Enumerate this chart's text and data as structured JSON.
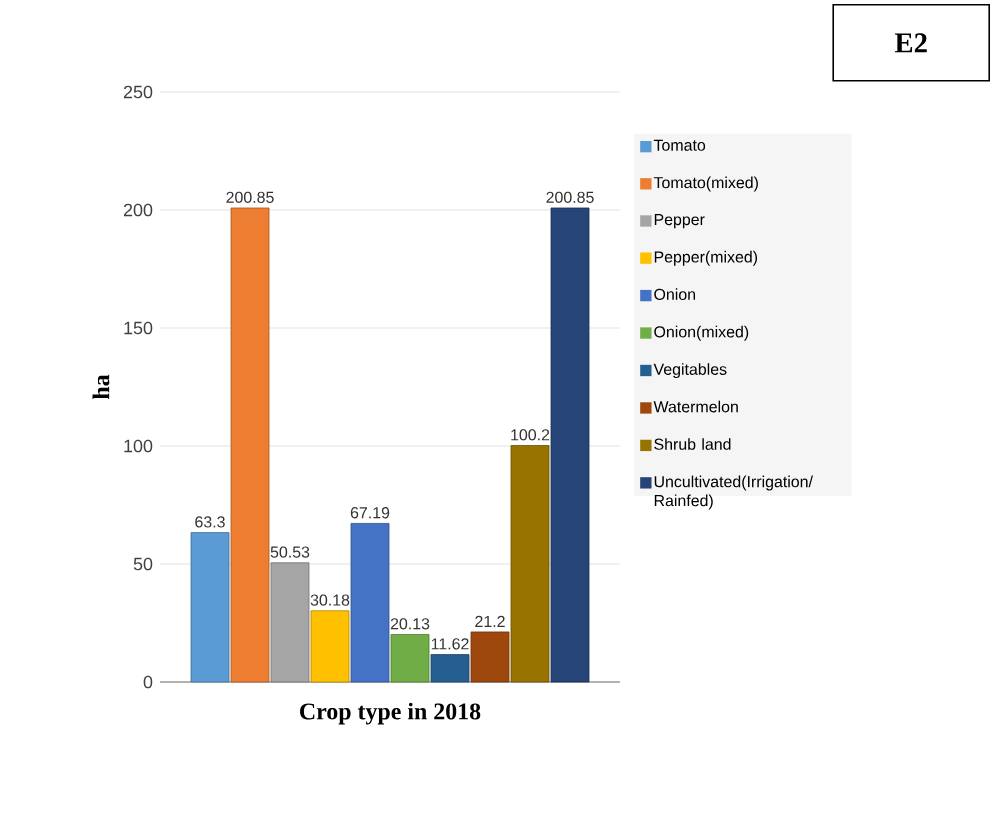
{
  "chart_data": {
    "type": "bar",
    "xlabel": "Crop type in 2018",
    "ylabel": "ha",
    "categories": [
      null
    ],
    "series": [
      {
        "name": "Tomato",
        "color": "#5b9bd5",
        "values": [
          63.3
        ]
      },
      {
        "name": "Tomato(mixed)",
        "color": "#ed7d31",
        "values": [
          200.85
        ]
      },
      {
        "name": "Pepper",
        "color": "#a5a5a5",
        "values": [
          50.53
        ]
      },
      {
        "name": "Pepper(mixed)",
        "color": "#ffc000",
        "values": [
          30.18
        ]
      },
      {
        "name": "Onion",
        "color": "#4472c4",
        "values": [
          67.19
        ]
      },
      {
        "name": "Onion(mixed)",
        "color": "#70ad47",
        "values": [
          20.13
        ]
      },
      {
        "name": "Vegitables",
        "color": "#255e91",
        "values": [
          11.62
        ]
      },
      {
        "name": "Watermelon",
        "color": "#9e480e",
        "values": [
          21.2
        ]
      },
      {
        "name": "Shrub land",
        "color": "#997300",
        "values": [
          100.2
        ]
      },
      {
        "name": "Uncultivated(Irrigation/ Rainfed)",
        "color": "#264478",
        "values": [
          200.85
        ]
      }
    ],
    "ylim": [
      0,
      250
    ],
    "yticks": [
      0,
      50,
      100,
      150,
      200,
      250
    ],
    "grid": "y",
    "legend": "right",
    "data_labels": true,
    "annotations": [
      "E2"
    ]
  }
}
